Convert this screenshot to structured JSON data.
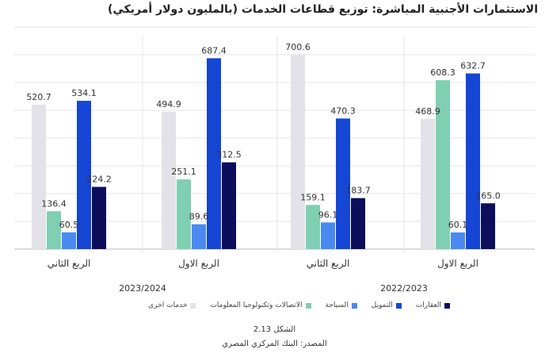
{
  "chart_data": {
    "type": "bar",
    "title": "الاستثمارات الأجنبية المباشرة: توزيع قطاعات الخدمات (بالمليون دولار أمريكي)",
    "groups": [
      {
        "label": "الربع الثاني",
        "year": "2023/2024"
      },
      {
        "label": "الربع الاول",
        "year": "2023/2024"
      },
      {
        "label": "الربع الثاني",
        "year": "2022/2023"
      },
      {
        "label": "الربع الاول",
        "year": "2022/2023"
      }
    ],
    "years": [
      "2023/2024",
      "2022/2023"
    ],
    "series": [
      {
        "name": "خدمات اخرى",
        "color": "#e3e2e8",
        "values": [
          520.7,
          494.9,
          700.6,
          468.9
        ]
      },
      {
        "name": "الاتصالات وتكنولوجيا المعلومات",
        "color": "#7fcfb3",
        "values": [
          136.4,
          251.1,
          159.1,
          608.3
        ]
      },
      {
        "name": "السياحة",
        "color": "#4a8af0",
        "values": [
          60.5,
          89.6,
          96.1,
          60.1
        ]
      },
      {
        "name": "التمويل",
        "color": "#1546d4",
        "values": [
          534.1,
          687.4,
          470.3,
          632.7
        ]
      },
      {
        "name": "العقارات",
        "color": "#0c0e5c",
        "values": [
          224.2,
          312.5,
          183.7,
          165.0
        ]
      }
    ],
    "ylim": [
      0,
      800
    ],
    "grid": true,
    "legend_position": "bottom"
  },
  "legend_order": [
    4,
    3,
    2,
    1,
    0
  ],
  "figure_number": "الشكل 2.13",
  "source": "المصدر: البنك المركزي المصري"
}
